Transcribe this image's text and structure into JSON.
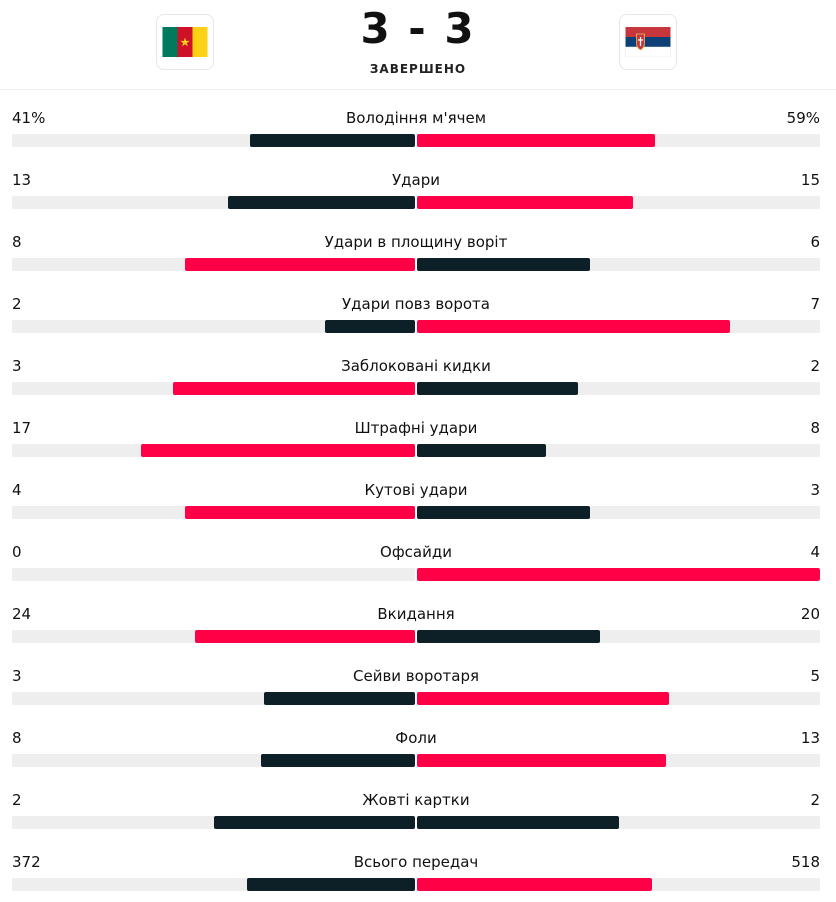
{
  "match": {
    "home_score": "3",
    "separator": "-",
    "away_score": "3",
    "score_text": "3 - 3",
    "status": "ЗАВЕРШЕНО",
    "home_flag_icon": "cameroon-flag-icon",
    "away_flag_icon": "serbia-flag-icon"
  },
  "colors": {
    "leader_bar": "#ff0046",
    "trailer_bar": "#0d1f27",
    "track": "#eeeeee"
  },
  "stats": [
    {
      "label": "Володіння м'ячем",
      "home": "41%",
      "away": "59%",
      "home_value": 41,
      "away_value": 59
    },
    {
      "label": "Удари",
      "home": "13",
      "away": "15",
      "home_value": 13,
      "away_value": 15
    },
    {
      "label": "Удари в площину воріт",
      "home": "8",
      "away": "6",
      "home_value": 8,
      "away_value": 6
    },
    {
      "label": "Удари повз ворота",
      "home": "2",
      "away": "7",
      "home_value": 2,
      "away_value": 7
    },
    {
      "label": "Заблоковані кидки",
      "home": "3",
      "away": "2",
      "home_value": 3,
      "away_value": 2
    },
    {
      "label": "Штрафні удари",
      "home": "17",
      "away": "8",
      "home_value": 17,
      "away_value": 8
    },
    {
      "label": "Кутові удари",
      "home": "4",
      "away": "3",
      "home_value": 4,
      "away_value": 3
    },
    {
      "label": "Офсайди",
      "home": "0",
      "away": "4",
      "home_value": 0,
      "away_value": 4
    },
    {
      "label": "Вкидання",
      "home": "24",
      "away": "20",
      "home_value": 24,
      "away_value": 20
    },
    {
      "label": "Сейви воротаря",
      "home": "3",
      "away": "5",
      "home_value": 3,
      "away_value": 5
    },
    {
      "label": "Фоли",
      "home": "8",
      "away": "13",
      "home_value": 8,
      "away_value": 13
    },
    {
      "label": "Жовті картки",
      "home": "2",
      "away": "2",
      "home_value": 2,
      "away_value": 2
    },
    {
      "label": "Всього передач",
      "home": "372",
      "away": "518",
      "home_value": 372,
      "away_value": 518
    }
  ]
}
